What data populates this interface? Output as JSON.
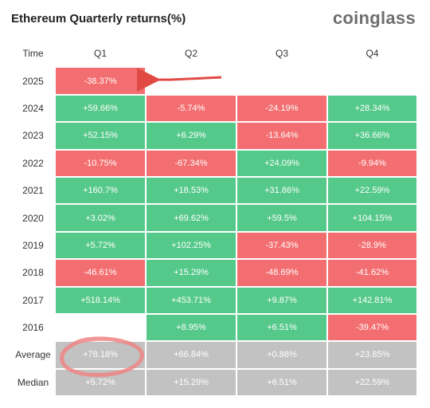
{
  "title": "Ethereum Quarterly returns(%)",
  "brand": "coinglass",
  "colors": {
    "positive": "#55c98a",
    "negative": "#f36e70",
    "stat": "#c2c2c2",
    "annotation": "#e04a43"
  },
  "chart_data": {
    "type": "table",
    "columns": [
      "Time",
      "Q1",
      "Q2",
      "Q3",
      "Q4"
    ],
    "rows": [
      {
        "label": "2025",
        "values": [
          "-38.37%",
          "",
          "",
          ""
        ]
      },
      {
        "label": "2024",
        "values": [
          "+59.66%",
          "-5.74%",
          "-24.19%",
          "+28.34%"
        ]
      },
      {
        "label": "2023",
        "values": [
          "+52.15%",
          "+6.29%",
          "-13.64%",
          "+36.66%"
        ]
      },
      {
        "label": "2022",
        "values": [
          "-10.75%",
          "-67.34%",
          "+24.09%",
          "-9.94%"
        ]
      },
      {
        "label": "2021",
        "values": [
          "+160.7%",
          "+18.53%",
          "+31.86%",
          "+22.59%"
        ]
      },
      {
        "label": "2020",
        "values": [
          "+3.02%",
          "+69.62%",
          "+59.5%",
          "+104.15%"
        ]
      },
      {
        "label": "2019",
        "values": [
          "+5.72%",
          "+102.25%",
          "-37.43%",
          "-28.9%"
        ]
      },
      {
        "label": "2018",
        "values": [
          "-46.61%",
          "+15.29%",
          "-48.69%",
          "-41.62%"
        ]
      },
      {
        "label": "2017",
        "values": [
          "+518.14%",
          "+453.71%",
          "+9.87%",
          "+142.81%"
        ]
      },
      {
        "label": "2016",
        "values": [
          "",
          "+8.95%",
          "+6.51%",
          "-39.47%"
        ]
      }
    ],
    "stats": [
      {
        "label": "Average",
        "values": [
          "+78.18%",
          "+66.84%",
          "+0.88%",
          "+23.85%"
        ]
      },
      {
        "label": "Median",
        "values": [
          "+5.72%",
          "+15.29%",
          "+6.51%",
          "+22.59%"
        ]
      }
    ]
  }
}
